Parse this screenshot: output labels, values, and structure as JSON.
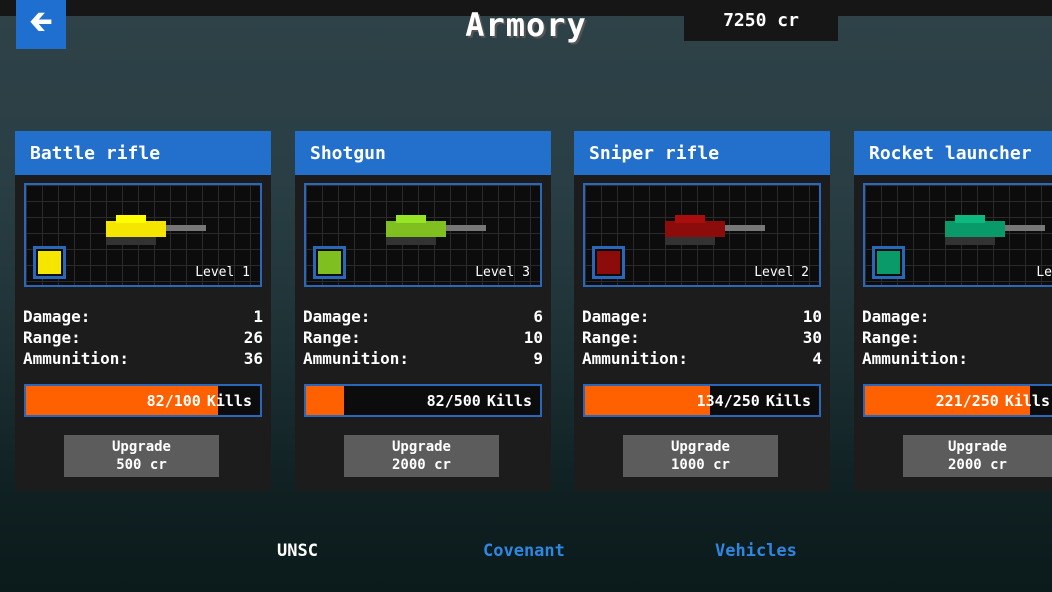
{
  "header": {
    "title": "Armory",
    "credits": "7250 cr",
    "back_icon": "arrow-left-icon"
  },
  "weapons": [
    {
      "name": "Battle rifle",
      "level": "Level 1",
      "color": "#f5e600",
      "stats": [
        {
          "label": "Damage:",
          "value": "1"
        },
        {
          "label": "Range:",
          "value": "26"
        },
        {
          "label": "Ammunition:",
          "value": "36"
        }
      ],
      "kills": 82,
      "kills_max": 100,
      "kills_text": "82/100",
      "kills_label": "Kills",
      "upgrade_label": "Upgrade",
      "upgrade_cost": "500 cr"
    },
    {
      "name": "Shotgun",
      "level": "Level 3",
      "color": "#7fbf1f",
      "stats": [
        {
          "label": "Damage:",
          "value": "6"
        },
        {
          "label": "Range:",
          "value": "10"
        },
        {
          "label": "Ammunition:",
          "value": "9"
        }
      ],
      "kills": 82,
      "kills_max": 500,
      "kills_text": "82/500",
      "kills_label": "Kills",
      "upgrade_label": "Upgrade",
      "upgrade_cost": "2000 cr"
    },
    {
      "name": "Sniper rifle",
      "level": "Level 2",
      "color": "#8c0c0c",
      "stats": [
        {
          "label": "Damage:",
          "value": "10"
        },
        {
          "label": "Range:",
          "value": "30"
        },
        {
          "label": "Ammunition:",
          "value": "4"
        }
      ],
      "kills": 134,
      "kills_max": 250,
      "kills_text": "134/250",
      "kills_label": "Kills",
      "upgrade_label": "Upgrade",
      "upgrade_cost": "1000 cr"
    },
    {
      "name": "Rocket launcher",
      "level": "Le",
      "color": "#0a9a6a",
      "stats": [
        {
          "label": "Damage:",
          "value": ""
        },
        {
          "label": "Range:",
          "value": ""
        },
        {
          "label": "Ammunition:",
          "value": ""
        }
      ],
      "kills": 221,
      "kills_max": 250,
      "kills_text": "221/250",
      "kills_label": "Kills",
      "upgrade_label": "Upgrade",
      "upgrade_cost": "2000 cr"
    }
  ],
  "tabs": [
    {
      "label": "UNSC",
      "active": true,
      "color": "#ffffff"
    },
    {
      "label": "Covenant",
      "active": false,
      "color": "#2f86e0"
    },
    {
      "label": "Vehicles",
      "active": false,
      "color": "#2f86e0"
    }
  ]
}
